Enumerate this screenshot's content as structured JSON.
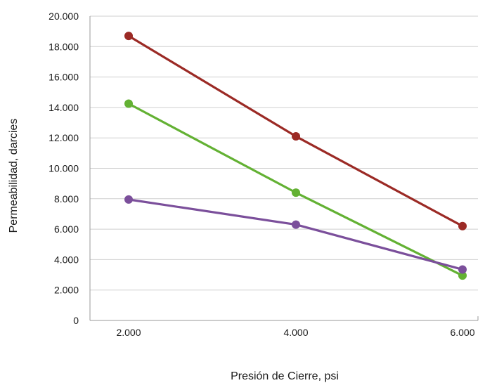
{
  "chart_data": {
    "type": "line",
    "xlabel": "Presión de Cierre, psi",
    "ylabel": "Permeabilidad, darcies",
    "x": [
      2000,
      4000,
      6000
    ],
    "x_tick_labels": [
      "2.000",
      "4.000",
      "6.000"
    ],
    "ylim": [
      0,
      20000
    ],
    "y_ticks": [
      0,
      2000,
      4000,
      6000,
      8000,
      10000,
      12000,
      14000,
      16000,
      18000,
      20000
    ],
    "y_tick_labels": [
      "0",
      "2.000",
      "4.000",
      "6.000",
      "8.000",
      "10.000",
      "12.000",
      "14.000",
      "16.000",
      "18.000",
      "20.000"
    ],
    "grid": true,
    "legend": "none",
    "series": [
      {
        "color": "#9b2a25",
        "values": [
          18700,
          12100,
          6200
        ]
      },
      {
        "color": "#63b133",
        "values": [
          14250,
          8400,
          2950
        ]
      },
      {
        "color": "#7b4f9b",
        "values": [
          7950,
          6300,
          3350
        ]
      }
    ]
  }
}
